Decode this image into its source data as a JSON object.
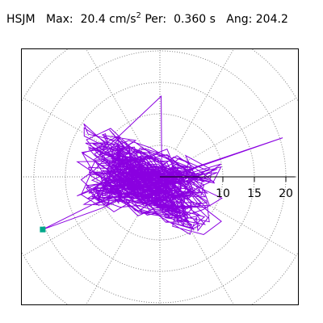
{
  "header": {
    "station": "HSJM",
    "max_label": "Max:",
    "max_value": "20.4 cm/s",
    "max_exp": "2",
    "per_label": "Per:",
    "per_value": "0.360 s",
    "ang_label": "Ang:",
    "ang_value": "204.2"
  },
  "chart_data": {
    "type": "line",
    "title": "HSJM  Max: 20.4 cm/s2  Per: 0.360 s  Ang: 204.2",
    "radial_ticks": [
      "10",
      "15",
      "20"
    ],
    "radial_tick_values": [
      10,
      15,
      20
    ],
    "radial_max": 21.5,
    "polar_grid": {
      "circles": [
        5,
        10,
        15,
        20,
        25
      ],
      "spoke_step_deg": 30,
      "style": "dotted"
    },
    "max_point": {
      "amplitude": 20.4,
      "angle_deg": 204.2
    },
    "colors": {
      "trace": "#8a00e0",
      "marker": "#00a88a",
      "grid": "#808080",
      "axis": "#000000"
    }
  }
}
